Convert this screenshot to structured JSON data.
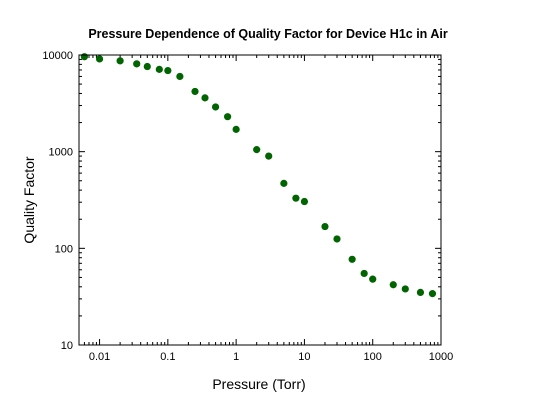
{
  "chart_data": {
    "type": "scatter",
    "title": "Pressure Dependence of Quality Factor for Device H1c in Air",
    "xlabel": "Pressure (Torr)",
    "ylabel": "Quality Factor",
    "xscale": "log",
    "yscale": "log",
    "xlim": [
      0.005,
      1000
    ],
    "ylim": [
      10,
      10000
    ],
    "xticks": [
      0.01,
      0.1,
      1,
      10,
      100,
      1000
    ],
    "xtick_labels": [
      "0.01",
      "0.1",
      "1",
      "10",
      "100",
      "1000"
    ],
    "yticks": [
      10,
      100,
      1000,
      10000
    ],
    "ytick_labels": [
      "10",
      "100",
      "1000",
      "10000"
    ],
    "grid": false,
    "legend": "none",
    "marker_color": "#006400",
    "series": [
      {
        "x": [
          0.006,
          0.01,
          0.02,
          0.035,
          0.05,
          0.075,
          0.1,
          0.15,
          0.25,
          0.35,
          0.5,
          0.75,
          1,
          2,
          3,
          5,
          7.5,
          10,
          20,
          30,
          50,
          75,
          100,
          200,
          300,
          500,
          750
        ],
        "y": [
          9600,
          9100,
          8700,
          8100,
          7600,
          7100,
          6900,
          6000,
          4200,
          3600,
          2900,
          2300,
          1700,
          1050,
          900,
          470,
          330,
          305,
          168,
          125,
          77,
          55,
          48,
          42,
          38,
          35,
          34
        ]
      }
    ]
  }
}
